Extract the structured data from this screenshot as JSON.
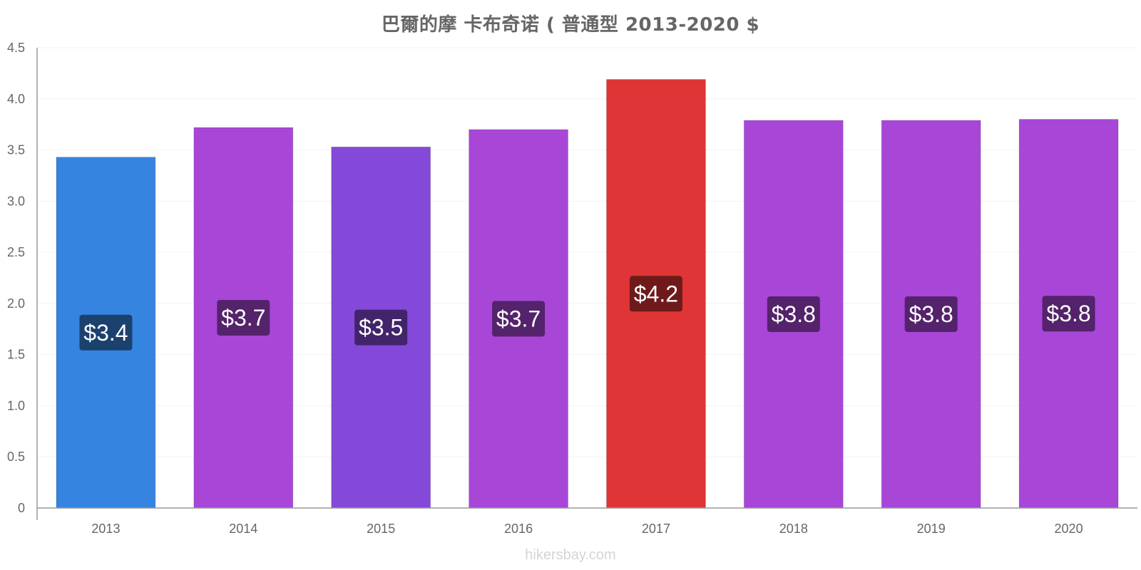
{
  "chart_data": {
    "type": "bar",
    "title": "巴爾的摩 卡布奇诺 ( 普通型 2013-2020 $",
    "xlabel": "",
    "ylabel": "",
    "categories": [
      "2013",
      "2014",
      "2015",
      "2016",
      "2017",
      "2018",
      "2019",
      "2020"
    ],
    "values": [
      3.43,
      3.72,
      3.53,
      3.7,
      4.19,
      3.79,
      3.79,
      3.8
    ],
    "data_labels": [
      "$3.4",
      "$3.7",
      "$3.5",
      "$3.7",
      "$4.2",
      "$3.8",
      "$3.8",
      "$3.8"
    ],
    "bar_colors": [
      "#3584e0",
      "#a846d8",
      "#8449d8",
      "#a846d8",
      "#e03536",
      "#a846d8",
      "#a846d8",
      "#a846d8"
    ],
    "label_box_colors": [
      "#1b416e",
      "#54236b",
      "#42246b",
      "#54236b",
      "#6e1a1b",
      "#54236b",
      "#54236b",
      "#54236b"
    ],
    "ylim": [
      0,
      4.5
    ],
    "yticks": [
      0,
      0.5,
      1.0,
      1.5,
      2.0,
      2.5,
      3.0,
      3.5,
      4.0,
      4.5
    ],
    "ytick_labels": [
      "0",
      "0.5",
      "1.0",
      "1.5",
      "2.0",
      "2.5",
      "3.0",
      "3.5",
      "4.0",
      "4.5"
    ],
    "grid": true,
    "legend": "none"
  },
  "watermark": "hikersbay.com"
}
